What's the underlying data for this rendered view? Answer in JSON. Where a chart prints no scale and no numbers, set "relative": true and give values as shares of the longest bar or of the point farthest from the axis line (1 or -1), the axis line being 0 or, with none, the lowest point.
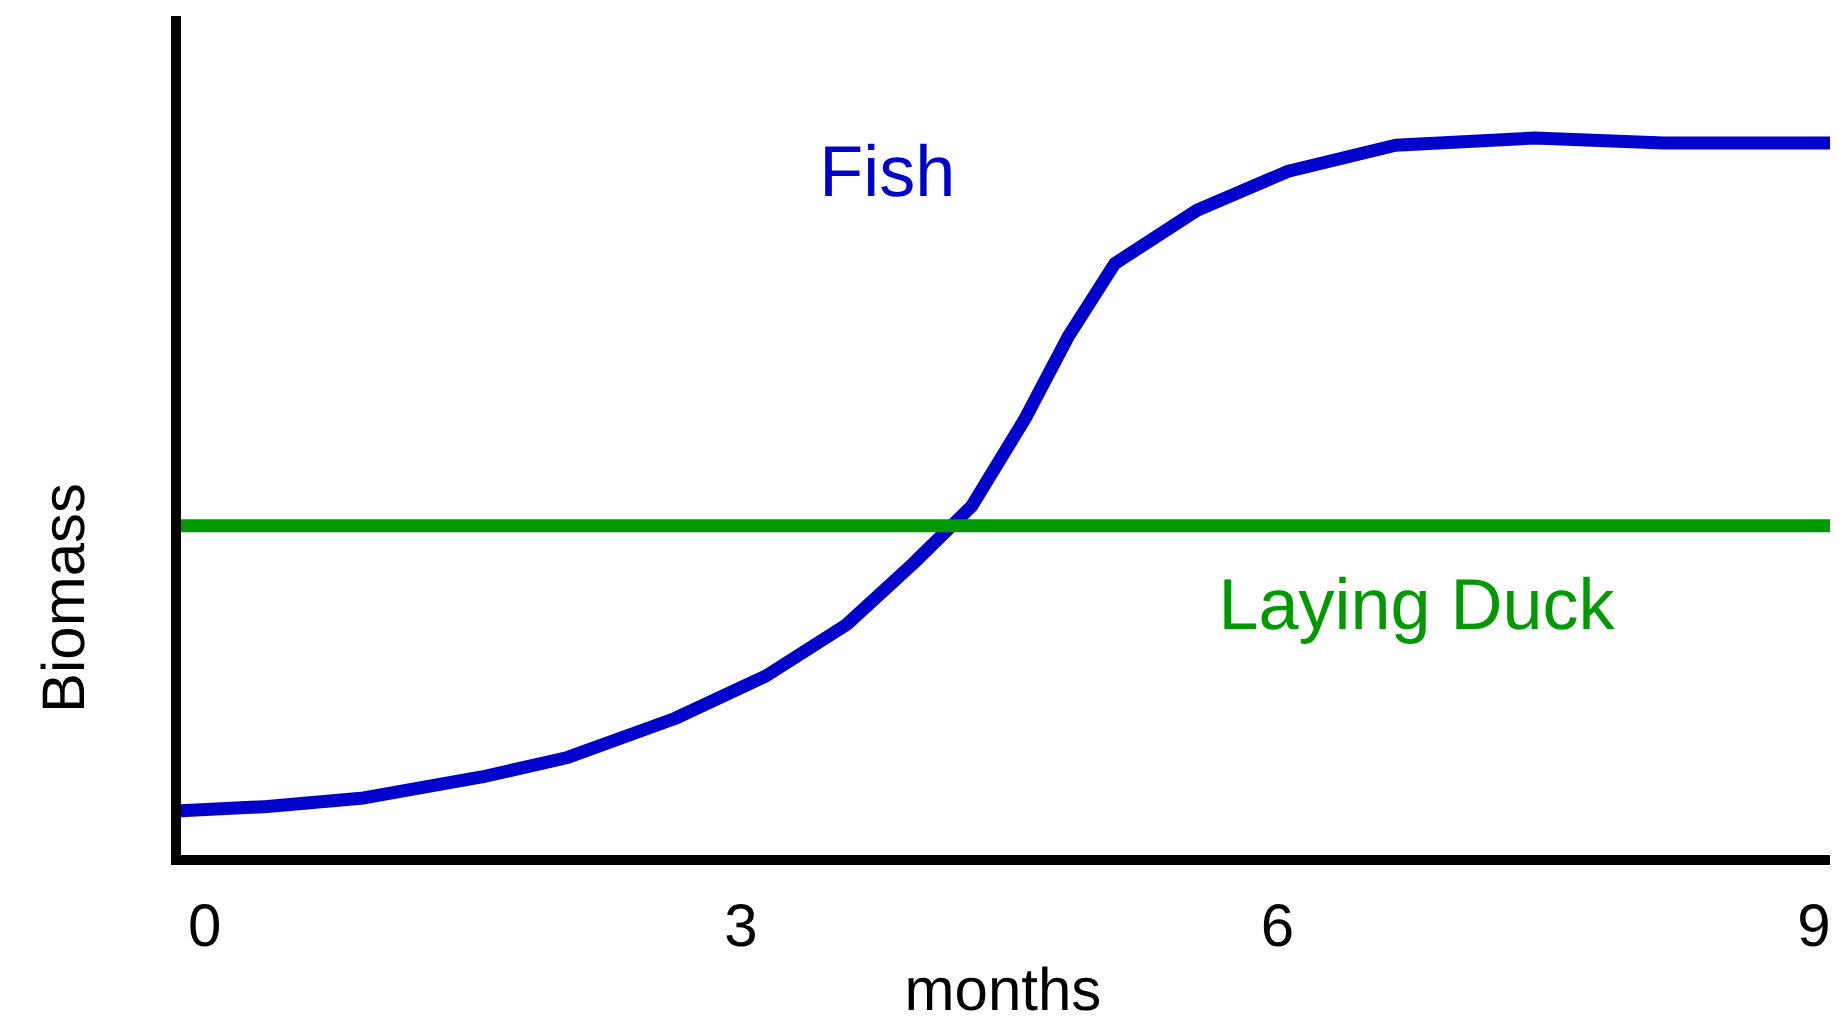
{
  "chart_data": {
    "type": "line",
    "relative": true,
    "xlabel": "months",
    "ylabel": "Biomass",
    "xlim": [
      -0.16,
      9.09
    ],
    "xticks": [
      0,
      3,
      6,
      9
    ],
    "grid": false,
    "marker": "none",
    "line_style": "solid",
    "series": [
      {
        "name": "Fish",
        "color": "#0000cc",
        "x": [
          -0.16,
          0.35,
          0.89,
          1.55,
          2.03,
          2.63,
          3.14,
          3.59,
          3.96,
          4.29,
          4.59,
          4.83,
          5.09,
          5.55,
          6.06,
          6.66,
          7.44,
          8.16,
          9.09
        ],
        "values": [
          0.068,
          0.074,
          0.086,
          0.115,
          0.142,
          0.196,
          0.255,
          0.326,
          0.41,
          0.49,
          0.612,
          0.725,
          0.826,
          0.9,
          0.954,
          0.99,
          1,
          0.993,
          0.993
        ]
      },
      {
        "name": "Laying Duck",
        "color": "#009900",
        "x": [
          -0.16,
          9.09
        ],
        "values": [
          0.463,
          0.463
        ]
      }
    ]
  }
}
